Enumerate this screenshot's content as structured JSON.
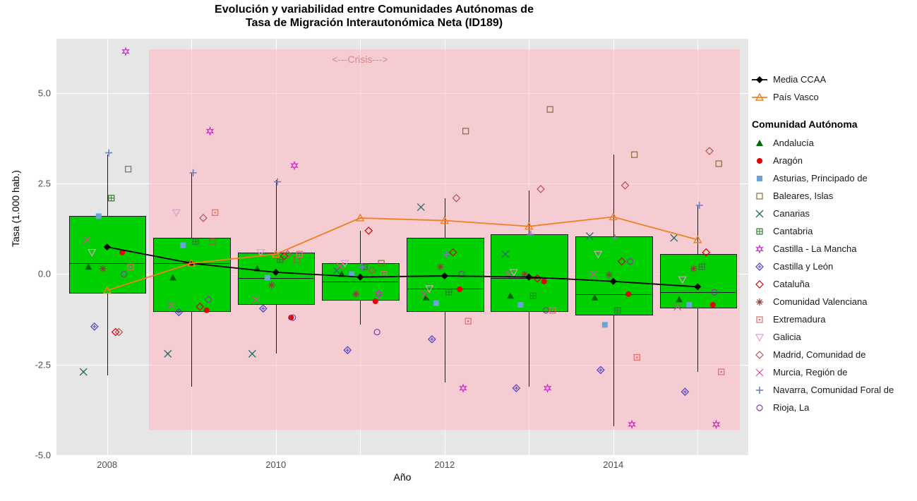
{
  "title_line1": "Evolución y variabilidad entre Comunidades Autónomas de",
  "title_line2": "Tasa de Migración Interautonómica Neta (ID189)",
  "x_axis_title": "Año",
  "y_axis_title": "Tasa (1.000 hab.)",
  "crisis_label": "<---Crisis--->",
  "panel": {
    "background": "#e6e6e6",
    "grid_color": "#ffffff",
    "crisis_band_color": "rgba(255,182,193,0.55)"
  },
  "ylim": [
    -5,
    6.5
  ],
  "yticks": [
    -5.0,
    -2.5,
    0.0,
    2.5,
    5.0
  ],
  "years": [
    2008,
    2009,
    2010,
    2011,
    2012,
    2013,
    2014,
    2015
  ],
  "xticks": [
    2008,
    2010,
    2012,
    2014
  ],
  "crisis_band_x": [
    2008.5,
    2015.5
  ],
  "crisis_band_y": [
    -4.3,
    6.2
  ],
  "bar_width_years": 0.9,
  "box_color": "#00d000",
  "box_border": "#1a1a1a",
  "boxplots": [
    {
      "year": 2008,
      "low": -2.8,
      "q1": -0.5,
      "med": 0.3,
      "q3": 1.6,
      "high": 3.3
    },
    {
      "year": 2009,
      "low": -3.1,
      "q1": -1.0,
      "med": 0.3,
      "q3": 1.0,
      "high": 2.8
    },
    {
      "year": 2010,
      "low": -2.2,
      "q1": -0.8,
      "med": -0.1,
      "q3": 0.6,
      "high": 2.6
    },
    {
      "year": 2011,
      "low": -1.4,
      "q1": -0.7,
      "med": -0.2,
      "q3": 0.3,
      "high": 1.2
    },
    {
      "year": 2012,
      "low": -3.0,
      "q1": -1.0,
      "med": -0.4,
      "q3": 1.0,
      "high": 2.1
    },
    {
      "year": 2013,
      "low": -3.1,
      "q1": -1.0,
      "med": -0.1,
      "q3": 1.1,
      "high": 2.3
    },
    {
      "year": 2014,
      "low": -4.2,
      "q1": -1.1,
      "med": -0.55,
      "q3": 1.05,
      "high": 3.3
    },
    {
      "year": 2015,
      "low": -2.7,
      "q1": -0.9,
      "med": -0.5,
      "q3": 0.55,
      "high": 1.9
    }
  ],
  "series_main": [
    {
      "key": "media",
      "label": "Media CCAA",
      "color": "#000000",
      "shape": "diamond_solid",
      "values": [
        0.75,
        0.3,
        0.05,
        -0.08,
        -0.05,
        -0.08,
        -0.2,
        -0.35
      ],
      "draw_line": true
    },
    {
      "key": "paisvasco",
      "label": "País Vasco",
      "color": "#f08020",
      "shape": "triangle_open",
      "values": [
        -0.45,
        0.3,
        0.55,
        1.55,
        1.48,
        1.32,
        1.58,
        0.95
      ],
      "draw_line": true
    }
  ],
  "legend_com_title": "Comunidad Autónoma",
  "jitter_offsets": [
    -0.22,
    0.18,
    -0.1,
    0.25,
    -0.28,
    0.05,
    0.22,
    -0.15,
    0.1,
    -0.05,
    0.28,
    -0.18,
    0.14,
    -0.24,
    0.02,
    0.2
  ],
  "communities": [
    {
      "label": "Andalucía",
      "color": "#006400",
      "shape": "triangle_solid",
      "values": [
        0.2,
        -0.1,
        0.15,
        0.0,
        -0.65,
        -0.6,
        -0.65,
        -0.7
      ]
    },
    {
      "label": "Aragón",
      "color": "#e60000",
      "shape": "circle_solid",
      "values": [
        0.6,
        -1.0,
        -1.2,
        -0.75,
        -0.42,
        -0.2,
        -0.55,
        -0.85
      ]
    },
    {
      "label": "Asturias, Principado de",
      "color": "#6aa3d5",
      "shape": "square_solid",
      "values": [
        1.6,
        0.8,
        -0.1,
        0.0,
        -0.8,
        -0.85,
        -1.4,
        -0.85
      ]
    },
    {
      "label": "Baleares, Islas",
      "color": "#8b6b3e",
      "shape": "square_open",
      "values": [
        2.9,
        0.9,
        0.4,
        0.3,
        3.95,
        4.55,
        3.3,
        3.05
      ]
    },
    {
      "label": "Canarias",
      "color": "#2a6e6e",
      "shape": "x_cross",
      "values": [
        -2.7,
        -2.2,
        -2.2,
        0.1,
        1.85,
        0.55,
        1.05,
        1.0
      ]
    },
    {
      "label": "Cantabria",
      "color": "#2e7a30",
      "shape": "square_plus",
      "values": [
        2.1,
        0.9,
        0.4,
        0.2,
        -0.5,
        -0.6,
        -1.0,
        0.2
      ]
    },
    {
      "label": "Castilla - La Mancha",
      "color": "#c92bc9",
      "shape": "star6",
      "values": [
        6.15,
        3.95,
        3.0,
        -0.55,
        -3.15,
        -3.15,
        -4.15,
        -4.15
      ]
    },
    {
      "label": "Castilla y León",
      "color": "#4b3fbf",
      "shape": "diamond_plus",
      "values": [
        -1.45,
        -1.05,
        -0.95,
        -2.1,
        -1.8,
        -3.15,
        -2.65,
        -3.25
      ]
    },
    {
      "label": "Cataluña",
      "color": "#d40000",
      "shape": "diamond_open",
      "values": [
        -1.6,
        -0.9,
        0.5,
        1.2,
        0.6,
        -0.12,
        0.35,
        0.6
      ]
    },
    {
      "label": "Comunidad Valenciana",
      "color": "#8d3c3c",
      "shape": "asterisk",
      "values": [
        0.15,
        0.3,
        -0.3,
        -0.55,
        0.2,
        0.0,
        -0.02,
        0.15
      ]
    },
    {
      "label": "Extremadura",
      "color": "#e46a6a",
      "shape": "square_dot",
      "values": [
        0.2,
        1.7,
        0.55,
        0.0,
        -1.3,
        -1.0,
        -2.3,
        -2.7
      ]
    },
    {
      "label": "Galicia",
      "color": "#e59ad0",
      "shape": "triangle_down_open",
      "values": [
        0.6,
        1.7,
        0.6,
        0.3,
        -0.4,
        0.05,
        0.55,
        -0.15
      ]
    },
    {
      "label": "Madrid, Comunidad de",
      "color": "#b85050",
      "shape": "diamond_open",
      "values": [
        -1.6,
        1.55,
        0.55,
        0.1,
        2.1,
        2.35,
        2.45,
        3.4
      ]
    },
    {
      "label": "Murcia, Región de",
      "color": "#d64ea0",
      "shape": "x_thin",
      "values": [
        0.95,
        -0.85,
        -0.7,
        0.22,
        -0.55,
        0.0,
        0.0,
        -0.9
      ]
    },
    {
      "label": "Navarra, Comunidad Foral de",
      "color": "#6f80c0",
      "shape": "plus",
      "values": [
        3.35,
        2.8,
        2.55,
        0.2,
        0.55,
        1.1,
        1.0,
        1.9
      ]
    },
    {
      "label": "Rioja, La",
      "color": "#7d3f9d",
      "shape": "circle_open",
      "values": [
        0.0,
        -0.7,
        -1.2,
        -1.6,
        0.0,
        -1.0,
        0.35,
        -0.5
      ]
    }
  ]
}
